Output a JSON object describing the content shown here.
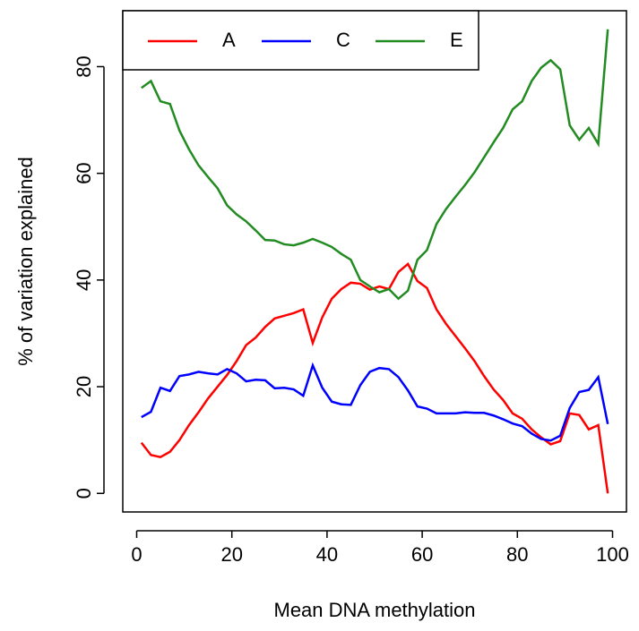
{
  "chart_data": {
    "type": "line",
    "x_label": "Mean DNA methylation",
    "y_label": "% of variation explained",
    "x": [
      1,
      3,
      5,
      7,
      9,
      11,
      13,
      15,
      17,
      19,
      21,
      23,
      25,
      27,
      29,
      31,
      33,
      35,
      37,
      39,
      41,
      43,
      45,
      47,
      49,
      51,
      53,
      55,
      57,
      59,
      61,
      63,
      65,
      67,
      69,
      71,
      73,
      75,
      77,
      79,
      81,
      83,
      85,
      87,
      89,
      91,
      93,
      95,
      97,
      99
    ],
    "series": [
      {
        "name": "A",
        "color": "#ff0000",
        "values": [
          9.5,
          7.2,
          6.8,
          7.8,
          10,
          12.8,
          15.2,
          17.8,
          20,
          22.2,
          24.8,
          27.8,
          29.2,
          31.2,
          32.8,
          33.3,
          33.8,
          34.5,
          28.2,
          33,
          36.5,
          38.3,
          39.5,
          39.3,
          38.2,
          38.8,
          38.3,
          41.5,
          43,
          39.8,
          38.5,
          34.5,
          31.8,
          29.5,
          27.2,
          24.8,
          22,
          19.5,
          17.5,
          15,
          14,
          12,
          10.5,
          9.2,
          9.8,
          15,
          14.7,
          12,
          12.8,
          0
        ]
      },
      {
        "name": "C",
        "color": "#0000ff",
        "values": [
          14.3,
          15.3,
          19.8,
          19.2,
          22,
          22.3,
          22.8,
          22.5,
          22.3,
          23.3,
          22.5,
          21,
          21.3,
          21.2,
          19.7,
          19.8,
          19.5,
          18.3,
          24,
          19.8,
          17.2,
          16.7,
          16.6,
          20.3,
          22.8,
          23.5,
          23.3,
          21.8,
          19.3,
          16.3,
          15.9,
          15,
          15,
          15,
          15.2,
          15.1,
          15.1,
          14.6,
          13.9,
          13.1,
          12.6,
          11.2,
          10.2,
          9.9,
          10.8,
          16,
          19,
          19.4,
          21.8,
          13
        ]
      },
      {
        "name": "E",
        "color": "#228b22",
        "values": [
          76,
          77.3,
          73.5,
          73,
          68,
          64.5,
          61.5,
          59.3,
          57.2,
          54,
          52.3,
          51,
          49.3,
          47.5,
          47.4,
          46.7,
          46.5,
          47,
          47.7,
          47,
          46.2,
          44.9,
          43.8,
          40,
          38.8,
          37.7,
          38.3,
          36.5,
          38,
          43.8,
          45.6,
          50.5,
          53.3,
          55.6,
          57.8,
          60.2,
          63,
          65.8,
          68.5,
          72,
          73.5,
          77.3,
          79.8,
          81.2,
          79.5,
          69,
          66.3,
          68.5,
          65.5,
          87
        ]
      }
    ],
    "xlim": [
      -2.92,
      102.92
    ],
    "ylim": [
      -3.48,
      90.48
    ],
    "xticks": [
      0,
      20,
      40,
      60,
      80,
      100
    ],
    "yticks": [
      0,
      20,
      40,
      60,
      80
    ],
    "legend": "topleft"
  }
}
